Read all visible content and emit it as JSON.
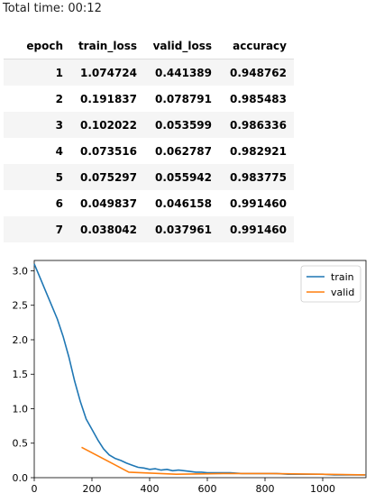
{
  "total_time": "Total time: 00:12",
  "table": {
    "headers": [
      "epoch",
      "train_loss",
      "valid_loss",
      "accuracy"
    ],
    "rows": [
      [
        "1",
        "1.074724",
        "0.441389",
        "0.948762"
      ],
      [
        "2",
        "0.191837",
        "0.078791",
        "0.985483"
      ],
      [
        "3",
        "0.102022",
        "0.053599",
        "0.986336"
      ],
      [
        "4",
        "0.073516",
        "0.062787",
        "0.982921"
      ],
      [
        "5",
        "0.075297",
        "0.055942",
        "0.983775"
      ],
      [
        "6",
        "0.049837",
        "0.046158",
        "0.991460"
      ],
      [
        "7",
        "0.038042",
        "0.037961",
        "0.991460"
      ]
    ]
  },
  "chart_data": {
    "type": "line",
    "xlim": [
      0,
      1150
    ],
    "ylim": [
      0,
      3.15
    ],
    "xticks": [
      0,
      200,
      400,
      600,
      800,
      1000
    ],
    "yticks": [
      0.0,
      0.5,
      1.0,
      1.5,
      2.0,
      2.5,
      3.0
    ],
    "xtick_labels": [
      "0",
      "200",
      "400",
      "600",
      "800",
      "1000"
    ],
    "ytick_labels": [
      "0.0",
      "0.5",
      "1.0",
      "1.5",
      "2.0",
      "2.5",
      "3.0"
    ],
    "legend_position": "top-right",
    "grid": false,
    "series": [
      {
        "name": "train",
        "color": "#1f77b4",
        "points": [
          [
            0,
            3.1
          ],
          [
            20,
            2.9
          ],
          [
            40,
            2.7
          ],
          [
            60,
            2.5
          ],
          [
            80,
            2.3
          ],
          [
            100,
            2.05
          ],
          [
            120,
            1.75
          ],
          [
            140,
            1.4
          ],
          [
            160,
            1.1
          ],
          [
            180,
            0.85
          ],
          [
            200,
            0.7
          ],
          [
            220,
            0.55
          ],
          [
            240,
            0.42
          ],
          [
            260,
            0.33
          ],
          [
            280,
            0.28
          ],
          [
            300,
            0.25
          ],
          [
            320,
            0.21
          ],
          [
            340,
            0.18
          ],
          [
            360,
            0.15
          ],
          [
            380,
            0.14
          ],
          [
            400,
            0.12
          ],
          [
            420,
            0.13
          ],
          [
            440,
            0.11
          ],
          [
            460,
            0.12
          ],
          [
            480,
            0.1
          ],
          [
            500,
            0.11
          ],
          [
            520,
            0.1
          ],
          [
            540,
            0.09
          ],
          [
            560,
            0.08
          ],
          [
            580,
            0.08
          ],
          [
            600,
            0.07
          ],
          [
            640,
            0.07
          ],
          [
            680,
            0.07
          ],
          [
            720,
            0.06
          ],
          [
            760,
            0.06
          ],
          [
            800,
            0.06
          ],
          [
            840,
            0.06
          ],
          [
            880,
            0.05
          ],
          [
            920,
            0.05
          ],
          [
            960,
            0.05
          ],
          [
            1000,
            0.05
          ],
          [
            1040,
            0.04
          ],
          [
            1080,
            0.04
          ],
          [
            1120,
            0.04
          ],
          [
            1150,
            0.04
          ]
        ]
      },
      {
        "name": "valid",
        "color": "#ff7f0e",
        "points": [
          [
            164,
            0.44
          ],
          [
            328,
            0.08
          ],
          [
            492,
            0.05
          ],
          [
            656,
            0.06
          ],
          [
            820,
            0.06
          ],
          [
            984,
            0.05
          ],
          [
            1148,
            0.04
          ]
        ]
      }
    ]
  }
}
